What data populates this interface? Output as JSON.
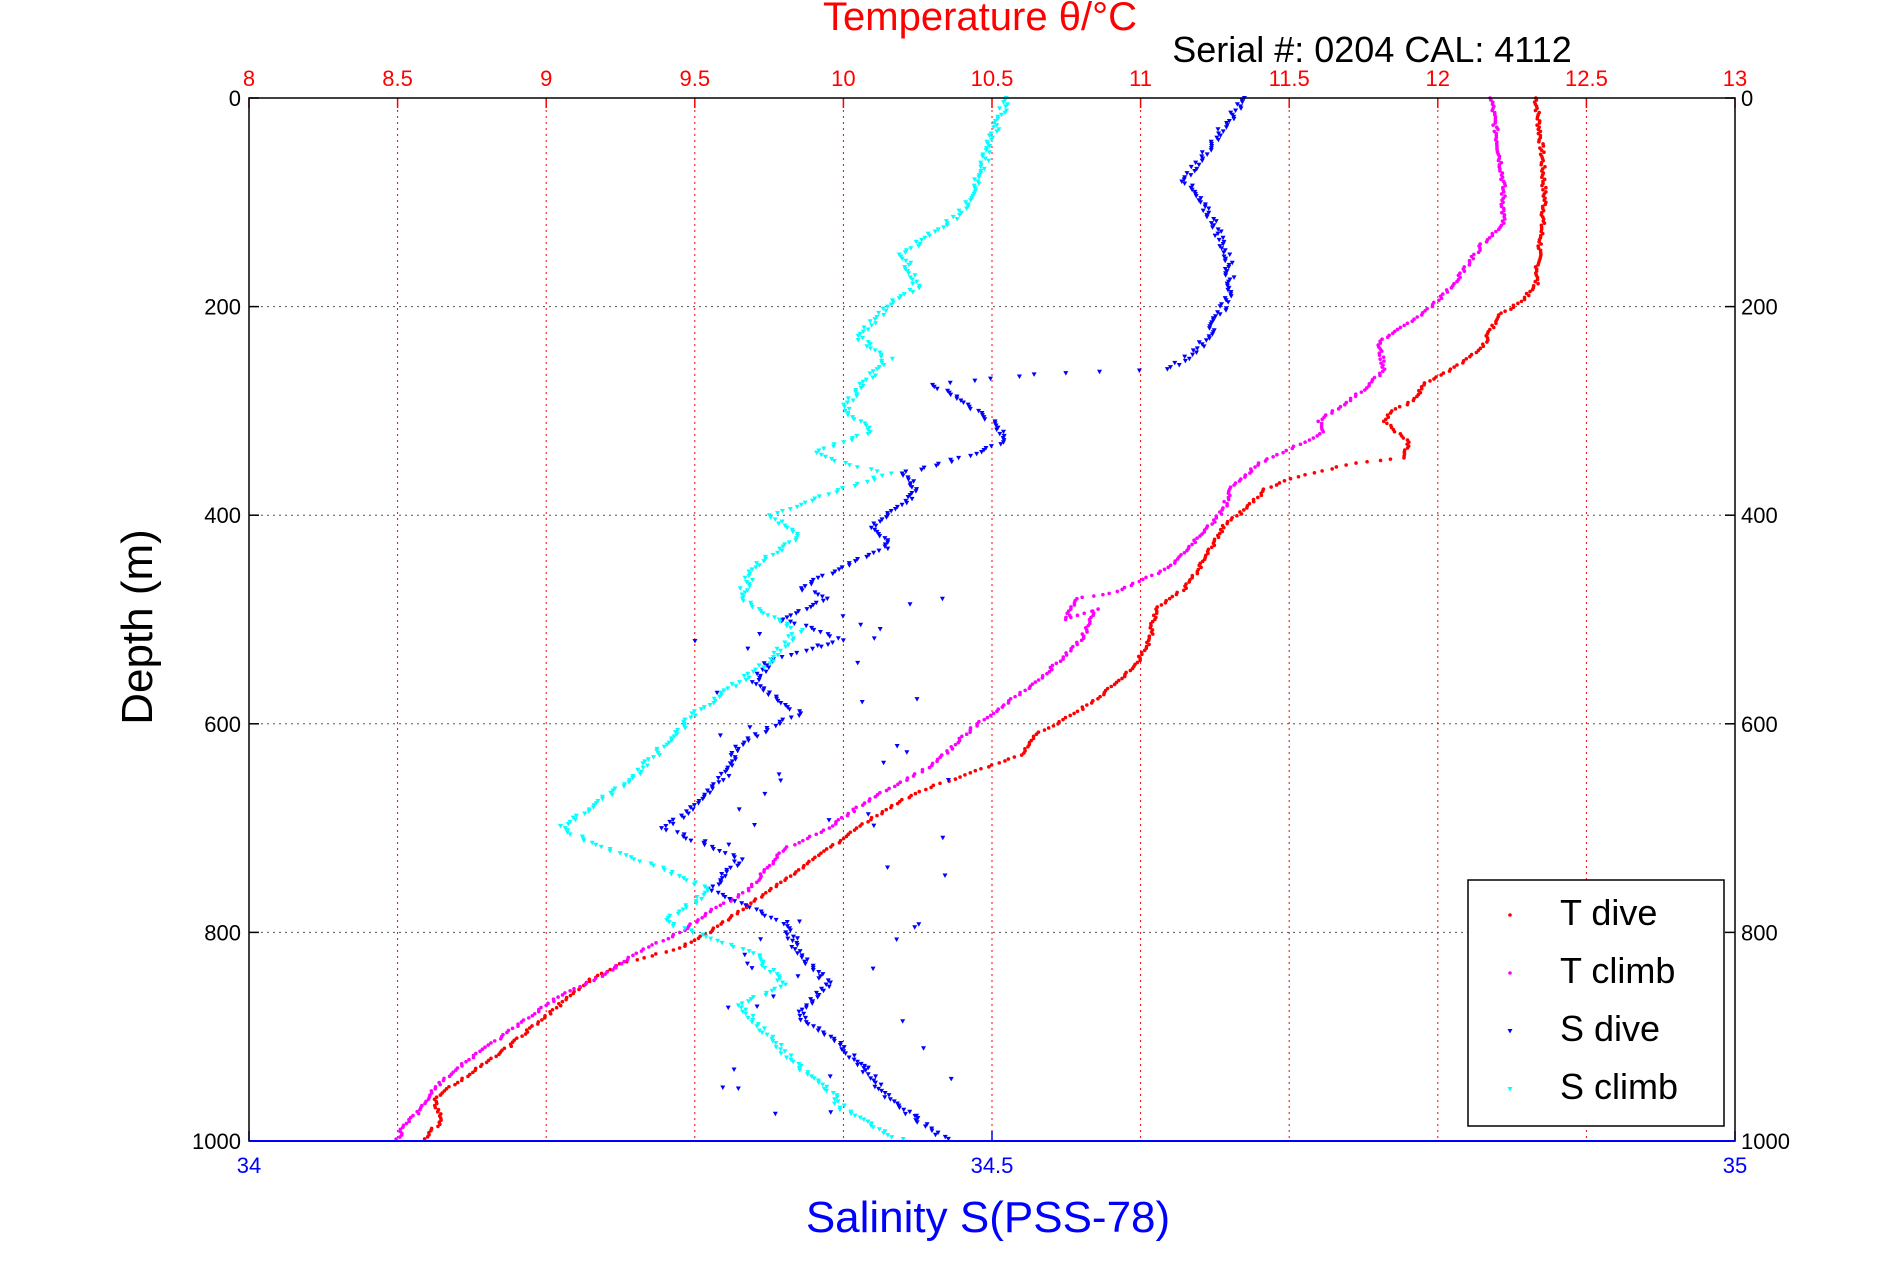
{
  "chart_data": {
    "type": "scatter",
    "title": "Temperature θ/°C",
    "subtitle": "Serial #: 0204  CAL: 4112",
    "xlabel": "Salinity S(PSS-78)",
    "ylabel": "Depth (m)",
    "grid": true,
    "legend_position": "bottom-right",
    "axes": {
      "temperature": {
        "ticks": [
          "8",
          "8.5",
          "9",
          "9.5",
          "10",
          "10.5",
          "11",
          "11.5",
          "12",
          "12.5",
          "13"
        ],
        "range": [
          8,
          13
        ],
        "color": "#ff0000"
      },
      "salinity": {
        "ticks": [
          "34",
          "34.5",
          "35"
        ],
        "range": [
          34,
          35
        ],
        "color": "#0000ff"
      },
      "depth": {
        "ticks": [
          "0",
          "200",
          "400",
          "600",
          "800",
          "1000"
        ],
        "range": [
          0,
          1000
        ],
        "reversed": true
      }
    },
    "series": [
      {
        "name": "T dive",
        "axis": "temperature",
        "color": "#ff0000",
        "marker": "dot",
        "x": [
          12.33,
          12.35,
          12.36,
          12.34,
          12.33,
          12.28,
          12.2,
          12.15,
          12.05,
          11.95,
          11.92,
          11.85,
          11.82,
          11.9,
          11.88,
          11.72,
          11.5,
          11.42,
          11.35,
          11.28,
          11.25,
          11.2,
          11.15,
          11.05,
          11.03,
          10.98,
          10.88,
          10.78,
          10.65,
          10.6,
          10.45,
          10.25,
          10.1,
          9.95,
          9.75,
          9.55,
          9.45,
          9.25,
          9.15,
          9.0,
          8.85,
          8.72,
          8.62,
          8.65,
          8.58
        ],
        "y": [
          0,
          50,
          100,
          150,
          180,
          195,
          210,
          240,
          260,
          275,
          290,
          300,
          310,
          330,
          345,
          350,
          365,
          375,
          395,
          410,
          425,
          450,
          470,
          490,
          520,
          545,
          570,
          590,
          610,
          630,
          645,
          665,
          690,
          720,
          760,
          800,
          815,
          830,
          845,
          880,
          915,
          940,
          960,
          980,
          1000
        ]
      },
      {
        "name": "T climb",
        "axis": "temperature",
        "color": "#ff00ff",
        "marker": "dot",
        "x": [
          12.18,
          12.2,
          12.22,
          12.22,
          12.15,
          12.1,
          12.05,
          11.98,
          11.88,
          11.8,
          11.82,
          11.75,
          11.6,
          11.62,
          11.55,
          11.4,
          11.3,
          11.28,
          11.2,
          11.1,
          10.9,
          10.78,
          10.75,
          10.85,
          10.8,
          10.65,
          10.45,
          10.3,
          10.1,
          9.95,
          9.8,
          9.68,
          9.55,
          9.45,
          9.3,
          9.2,
          9.05,
          8.9,
          8.7,
          8.62,
          8.58,
          8.52,
          8.5
        ],
        "y": [
          0,
          40,
          80,
          120,
          140,
          160,
          180,
          200,
          220,
          235,
          260,
          280,
          310,
          320,
          330,
          350,
          375,
          395,
          420,
          450,
          475,
          480,
          500,
          490,
          520,
          560,
          600,
          640,
          670,
          700,
          720,
          760,
          780,
          800,
          820,
          840,
          860,
          890,
          930,
          950,
          970,
          985,
          1000
        ]
      },
      {
        "name": "S dive",
        "axis": "salinity",
        "color": "#0000ff",
        "marker": "triangle",
        "x": [
          34.67,
          34.65,
          34.63,
          34.65,
          34.66,
          34.66,
          34.65,
          34.64,
          34.62,
          34.53,
          34.46,
          34.48,
          34.5,
          34.51,
          34.48,
          34.44,
          34.45,
          34.44,
          34.42,
          34.43,
          34.4,
          34.37,
          34.39,
          34.36,
          34.4,
          34.35,
          34.34,
          34.37,
          34.33,
          34.32,
          34.3,
          34.28,
          34.33,
          34.31,
          34.36,
          34.37,
          34.39,
          34.37,
          34.4,
          34.42,
          34.43,
          34.45,
          34.47
        ],
        "y": [
          0,
          40,
          80,
          120,
          160,
          190,
          215,
          240,
          260,
          265,
          275,
          290,
          310,
          330,
          345,
          360,
          375,
          390,
          410,
          430,
          450,
          470,
          480,
          500,
          520,
          540,
          560,
          590,
          620,
          650,
          680,
          700,
          730,
          760,
          790,
          820,
          850,
          880,
          910,
          940,
          960,
          980,
          1000
        ]
      },
      {
        "name": "S climb",
        "axis": "salinity",
        "color": "#00ffff",
        "marker": "triangle",
        "x": [
          34.51,
          34.5,
          34.49,
          34.48,
          34.46,
          34.44,
          34.45,
          34.43,
          34.41,
          34.43,
          34.41,
          34.4,
          34.42,
          34.38,
          34.4,
          34.43,
          34.39,
          34.35,
          34.37,
          34.34,
          34.33,
          34.37,
          34.35,
          34.33,
          34.3,
          34.28,
          34.26,
          34.23,
          34.21,
          34.24,
          34.28,
          34.31,
          34.28,
          34.34,
          34.36,
          34.33,
          34.35,
          34.37,
          34.39,
          34.4,
          34.42,
          34.44
        ],
        "y": [
          0,
          40,
          80,
          110,
          130,
          150,
          180,
          200,
          230,
          250,
          280,
          300,
          320,
          340,
          350,
          360,
          380,
          400,
          420,
          450,
          480,
          510,
          540,
          560,
          590,
          620,
          650,
          680,
          700,
          720,
          740,
          760,
          790,
          820,
          850,
          870,
          900,
          930,
          950,
          970,
          985,
          1000
        ]
      }
    ]
  }
}
